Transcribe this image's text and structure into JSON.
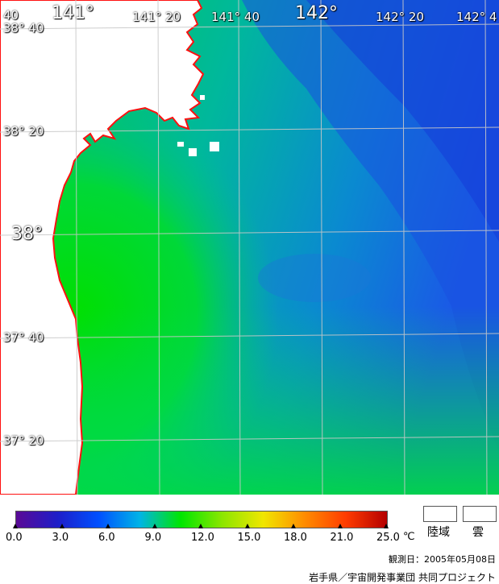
{
  "map": {
    "lon_labels": [
      "141°",
      "141° 20",
      "141° 40",
      "142°",
      "142° 20",
      "142° 4"
    ],
    "lat_labels": [
      "38° 40",
      "38° 20",
      "38°",
      "37° 40",
      "37° 20"
    ],
    "corner_label": "40"
  },
  "colorbar": {
    "ticks": [
      "0.0",
      "3.0",
      "6.0",
      "9.0",
      "12.0",
      "15.0",
      "18.0",
      "21.0",
      "25.0"
    ],
    "unit": "℃",
    "colors": [
      "#5a0a96",
      "#1e1ec8",
      "#0050ff",
      "#00b4e6",
      "#00e600",
      "#8ce600",
      "#f0e600",
      "#ff8c00",
      "#ff3c00",
      "#b40000"
    ]
  },
  "legend": {
    "land": "陸域",
    "cloud": "雲"
  },
  "observation_date": "観測日：2005年05月08日",
  "credit": "岩手県／宇宙開発事業団 共同プロジェクト"
}
